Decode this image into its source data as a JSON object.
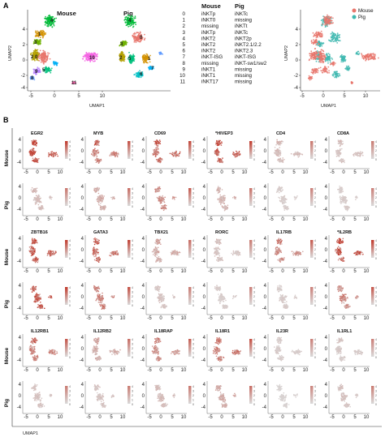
{
  "panel_a": {
    "letter": "A",
    "titles": [
      "Mouse",
      "Pig"
    ],
    "ylabel": "UMAP2",
    "xlabel": "UMAP1",
    "xticks": [
      "-5",
      "0",
      "5",
      "10"
    ],
    "yticks": [
      "4",
      "2",
      "0",
      "-2",
      "-4"
    ],
    "cluster_labels_mouse": [
      {
        "text": "4"
      },
      {
        "text": "1"
      },
      {
        "text": "3"
      },
      {
        "text": "2 0"
      },
      {
        "text": "5"
      },
      {
        "text": "9"
      },
      {
        "text": "8"
      },
      {
        "text": "11"
      },
      {
        "text": "10"
      }
    ],
    "cluster_labels_pig": [
      {
        "text": "4"
      },
      {
        "text": "0"
      },
      {
        "text": "3"
      },
      {
        "text": "2"
      },
      {
        "text": "5"
      },
      {
        "text": "1"
      },
      {
        "text": "7"
      },
      {
        "text": "6"
      }
    ],
    "legend_headers": {
      "mouse": "Mouse",
      "pig": "Pig"
    },
    "legend": [
      {
        "id": "0",
        "mouse": "iNKTp",
        "pig": "iNKTc",
        "color": "#e8766c"
      },
      {
        "id": "1",
        "mouse": "iNKT0",
        "pig": "missing",
        "color": "#d39200"
      },
      {
        "id": "2",
        "mouse": "missing",
        "pig": "iNKTt",
        "color": "#b3a000"
      },
      {
        "id": "3",
        "mouse": "iNKTp",
        "pig": "iNKTc",
        "color": "#6fb000"
      },
      {
        "id": "4",
        "mouse": "iNKT2",
        "pig": "iNKT2p",
        "color": "#00ba38"
      },
      {
        "id": "5",
        "mouse": "iNKT2",
        "pig": "iNKT2.1/2.2",
        "color": "#00bf7d"
      },
      {
        "id": "6",
        "mouse": "iNKT2",
        "pig": "iNKT2.3",
        "color": "#00bfc4"
      },
      {
        "id": "7",
        "mouse": "iNKT-ISG",
        "pig": "iNKT-ISG",
        "color": "#00b0f6"
      },
      {
        "id": "8",
        "mouse": "missing",
        "pig": "iNKT-sw1/sw2",
        "color": "#619cff"
      },
      {
        "id": "9",
        "mouse": "iNKT1",
        "pig": "missing",
        "color": "#b983ff"
      },
      {
        "id": "10",
        "mouse": "iNKT1",
        "pig": "missing",
        "color": "#f564e3"
      },
      {
        "id": "11",
        "mouse": "iNKT17",
        "pig": "missing",
        "color": "#ff64b0"
      }
    ],
    "species_legend": [
      {
        "label": "Mouse",
        "color": "#e8766c"
      },
      {
        "label": "Pig",
        "color": "#3fb8b0"
      }
    ]
  },
  "panel_b": {
    "letter": "B",
    "xlabel": "UMAP1",
    "xticks": [
      "-5",
      "0",
      "5",
      "10"
    ],
    "yticks": [
      "4",
      "0",
      "-4"
    ],
    "colorbar_ticks": [
      "4",
      "3",
      "2",
      "1",
      "0"
    ],
    "colors": {
      "high": "#c0392b",
      "low": "#d9d9d9"
    },
    "blocks": [
      {
        "genes": [
          "EGR2",
          "MYB",
          "CD69",
          "*HIVEP3",
          "CD4",
          "CD8A"
        ],
        "rows": [
          "Mouse",
          "Pig"
        ]
      },
      {
        "genes": [
          "ZBTB16",
          "GATA3",
          "TBX21",
          "RORC",
          "IL17RB",
          "*IL2RB"
        ],
        "rows": [
          "Mouse",
          "Pig"
        ]
      },
      {
        "genes": [
          "IL12RB1",
          "IL12RB2",
          "IL18RAP",
          "IL18R1",
          "IL23R",
          "IL1RL1"
        ],
        "rows": [
          "Mouse",
          "Pig"
        ]
      }
    ],
    "expression": [
      [
        [
          0.9,
          0.6,
          0.7,
          0.8,
          0.2,
          0.15
        ],
        [
          0.2,
          0.3,
          0.5,
          0.25,
          0.1,
          0.1
        ]
      ],
      [
        [
          0.8,
          0.75,
          0.3,
          0.15,
          0.5,
          0.85
        ],
        [
          0.85,
          0.6,
          0.15,
          0.1,
          0.1,
          0.55
        ]
      ],
      [
        [
          0.55,
          0.3,
          0.45,
          0.6,
          0.1,
          0.1
        ],
        [
          0.15,
          0.15,
          0.2,
          0.3,
          0.05,
          0.15
        ]
      ]
    ]
  }
}
